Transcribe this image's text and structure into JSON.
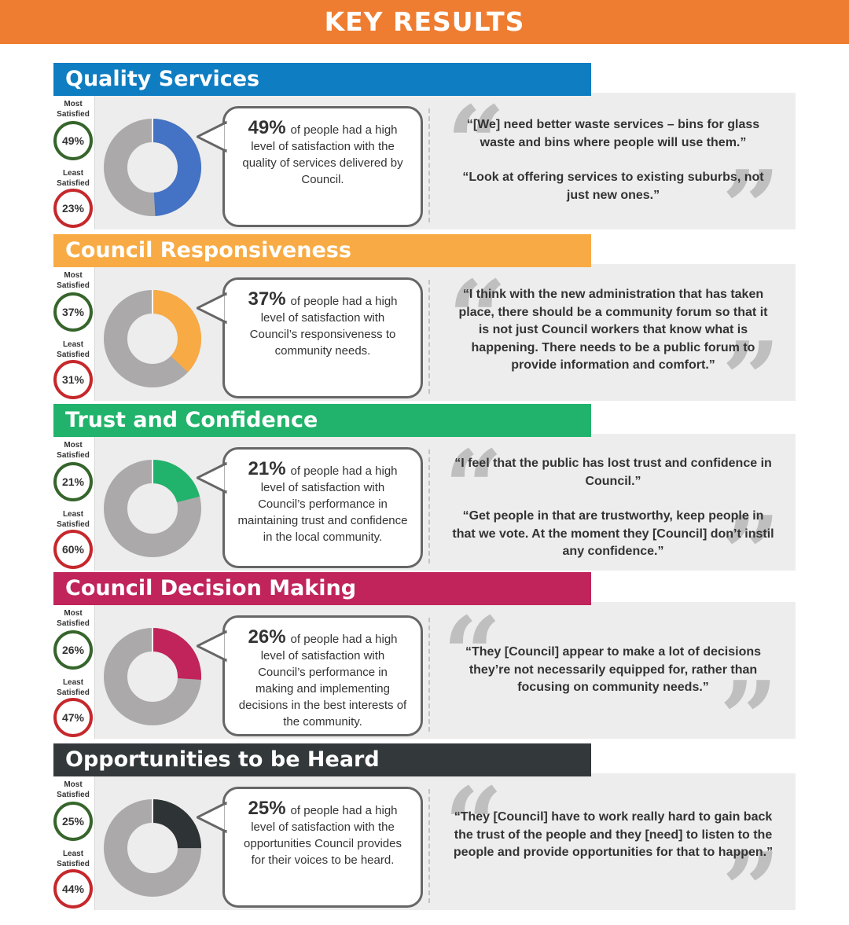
{
  "banner": {
    "title": "KEY RESULTS"
  },
  "labels": {
    "most": "Most Satisfied",
    "least": "Least Satisfied"
  },
  "colors": {
    "banner": "#EE7D31",
    "donut_remainder": "#ABA9AA",
    "most_ring": "#36652C",
    "least_ring": "#C6282C"
  },
  "sections": [
    {
      "title": "Quality Services",
      "color": "#0E7DC2",
      "donut_color": "#4472C4",
      "satisfaction": 49,
      "most": "49%",
      "least": "23%",
      "pct": "49%",
      "description": "of people had a high level of satisfaction with the quality of services delivered by Council.",
      "quotes": [
        "“[We] need better waste services – bins for glass waste and bins where people will use them.”",
        "“Look at offering services to existing suburbs, not just new ones.”"
      ]
    },
    {
      "title": "Council Responsiveness",
      "color": "#F8AB44",
      "donut_color": "#F8AB44",
      "satisfaction": 37,
      "most": "37%",
      "least": "31%",
      "pct": "37%",
      "description": "of people had a high level of satisfaction with Council’s responsiveness to community needs.",
      "quotes": [
        "“I think with the new administration that has taken place, there should be a community forum so that it is not just Council workers that know what is happening. There needs to be a public forum to provide information and comfort.”"
      ]
    },
    {
      "title": "Trust and Confidence",
      "color": "#21B36B",
      "donut_color": "#21B36B",
      "satisfaction": 21,
      "most": "21%",
      "least": "60%",
      "pct": "21%",
      "description": "of people had a high level of satisfaction with Council’s performance in maintaining trust and confidence in the local community.",
      "quotes": [
        "“I feel that the public has lost trust and confidence in Council.”",
        "“Get people in that are trustworthy, keep people in that we vote. At the moment they [Council] don’t instil any confidence.”"
      ]
    },
    {
      "title": "Council Decision Making",
      "color": "#C0245A",
      "donut_color": "#C0245A",
      "satisfaction": 26,
      "most": "26%",
      "least": "47%",
      "pct": "26%",
      "description": "of people had a high level of satisfaction with Council’s performance in making and implementing decisions in the best interests of the community.",
      "quotes": [
        "“They [Council] appear to make a lot of decisions they’re not necessarily equipped for, rather than focusing on community needs.”"
      ]
    },
    {
      "title": "Opportunities to be Heard",
      "color": "#33383B",
      "donut_color": "#2E3336",
      "satisfaction": 25,
      "most": "25%",
      "least": "44%",
      "pct": "25%",
      "description": "of people had a high level of satisfaction with the opportunities Council provides for their voices to be heard.",
      "quotes": [
        "“They [Council] have to work really hard to gain back the trust of the people and they [need] to listen to the people and provide opportunities for that to happen.”"
      ]
    }
  ]
}
